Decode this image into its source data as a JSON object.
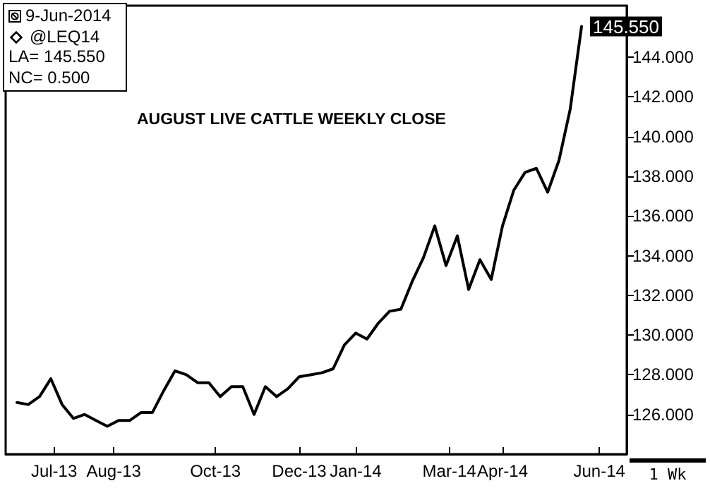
{
  "chart_data": {
    "type": "line",
    "title": "AUGUST LIVE CATTLE WEEKLY CLOSE",
    "annotations": [
      "9-Jun-2014",
      "@LEQ14",
      "LA= 145.550",
      "NC= 0.500",
      "1 Wk"
    ],
    "x": [
      "2013-06-24",
      "2013-07-01",
      "2013-07-08",
      "2013-07-15",
      "2013-07-22",
      "2013-07-29",
      "2013-08-05",
      "2013-08-12",
      "2013-08-19",
      "2013-08-26",
      "2013-09-02",
      "2013-09-09",
      "2013-09-16",
      "2013-09-23",
      "2013-09-30",
      "2013-10-07",
      "2013-10-14",
      "2013-10-21",
      "2013-10-28",
      "2013-11-04",
      "2013-11-11",
      "2013-11-18",
      "2013-11-25",
      "2013-12-02",
      "2013-12-09",
      "2013-12-16",
      "2013-12-23",
      "2013-12-30",
      "2014-01-06",
      "2014-01-13",
      "2014-01-20",
      "2014-01-27",
      "2014-02-03",
      "2014-02-10",
      "2014-02-17",
      "2014-02-24",
      "2014-03-03",
      "2014-03-10",
      "2014-03-17",
      "2014-03-24",
      "2014-03-31",
      "2014-04-07",
      "2014-04-14",
      "2014-04-21",
      "2014-04-28",
      "2014-05-05",
      "2014-05-12",
      "2014-05-19",
      "2014-05-26",
      "2014-06-02",
      "2014-06-09"
    ],
    "series": [
      {
        "color": "#000000",
        "values": [
          126.6,
          126.5,
          126.9,
          127.8,
          126.5,
          125.8,
          126.0,
          125.7,
          125.4,
          125.7,
          125.7,
          126.1,
          126.1,
          127.2,
          128.2,
          128.0,
          127.6,
          127.6,
          126.9,
          127.4,
          127.4,
          126.0,
          127.4,
          126.9,
          127.3,
          127.9,
          128.0,
          128.1,
          128.3,
          129.5,
          130.1,
          129.8,
          130.6,
          131.2,
          131.3,
          132.7,
          133.9,
          135.5,
          133.5,
          135.0,
          132.3,
          133.8,
          132.8,
          135.5,
          137.3,
          138.2,
          138.4,
          137.2,
          138.8,
          141.4,
          145.55
        ],
        "value_labels": [
          null,
          null,
          null,
          null,
          null,
          null,
          null,
          null,
          null,
          null,
          null,
          null,
          null,
          null,
          null,
          null,
          null,
          null,
          null,
          null,
          null,
          null,
          null,
          null,
          null,
          null,
          null,
          null,
          null,
          null,
          null,
          null,
          null,
          null,
          null,
          null,
          null,
          null,
          null,
          null,
          null,
          null,
          null,
          null,
          null,
          null,
          null,
          null,
          null,
          null,
          "145.550"
        ]
      }
    ],
    "xlim": [
      "2013-06-17",
      "2014-07-07"
    ],
    "xticks": [
      {
        "value": "2013-07-17",
        "label": "Jul-13"
      },
      {
        "value": "2013-08-23",
        "label": "Aug-13"
      },
      {
        "value": "2013-10-25",
        "label": "Oct-13"
      },
      {
        "value": "2013-12-16",
        "label": "Dec-13"
      },
      {
        "value": "2014-01-20",
        "label": "Jan-14"
      },
      {
        "value": "2014-03-19",
        "label": "Mar-14"
      },
      {
        "value": "2014-04-21",
        "label": "Apr-14"
      },
      {
        "value": "2014-06-20",
        "label": "Jun-14"
      }
    ],
    "ylim": [
      124,
      146.6
    ],
    "yticks": [
      {
        "value": 126,
        "label": "126.000"
      },
      {
        "value": 128,
        "label": "128.000"
      },
      {
        "value": 130,
        "label": "130.000"
      },
      {
        "value": 132,
        "label": "132.000"
      },
      {
        "value": 134,
        "label": "134.000"
      },
      {
        "value": 136,
        "label": "136.000"
      },
      {
        "value": 138,
        "label": "138.000"
      },
      {
        "value": 140,
        "label": "140.000"
      },
      {
        "value": 142,
        "label": "142.000"
      },
      {
        "value": 144,
        "label": "144.000"
      }
    ],
    "grid": false,
    "marker": "none",
    "line_style": "solid"
  }
}
